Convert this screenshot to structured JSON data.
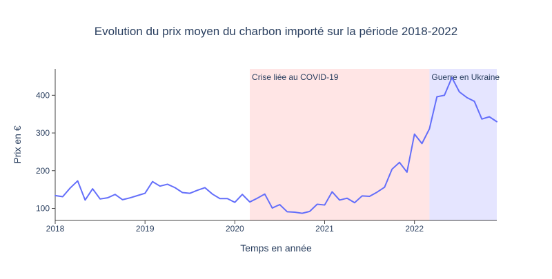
{
  "chart_data": {
    "type": "line",
    "title": "Evolution du prix moyen du charbon importé sur la période 2018-2022",
    "xlabel": "Temps en année",
    "ylabel": "Prix en €",
    "x_tick_labels": [
      "2018",
      "2019",
      "2020",
      "2021",
      "2022"
    ],
    "y_ticks": [
      100,
      200,
      300,
      400
    ],
    "ylim": [
      68,
      470
    ],
    "grid": false,
    "line_color": "#636efa",
    "regions": [
      {
        "label": "Crise liée au COVID-19",
        "start": "2020-03",
        "end": "2022-03",
        "color": "#ff0000",
        "opacity": 0.1
      },
      {
        "label": "Guerre en Ukraine",
        "start": "2022-03",
        "end": "2022-12",
        "color": "#0000ff",
        "opacity": 0.1
      }
    ],
    "x": [
      "2018-01",
      "2018-02",
      "2018-03",
      "2018-04",
      "2018-05",
      "2018-06",
      "2018-07",
      "2018-08",
      "2018-09",
      "2018-10",
      "2018-11",
      "2018-12",
      "2019-01",
      "2019-02",
      "2019-03",
      "2019-04",
      "2019-05",
      "2019-06",
      "2019-07",
      "2019-08",
      "2019-09",
      "2019-10",
      "2019-11",
      "2019-12",
      "2020-01",
      "2020-02",
      "2020-03",
      "2020-04",
      "2020-05",
      "2020-06",
      "2020-07",
      "2020-08",
      "2020-09",
      "2020-10",
      "2020-11",
      "2020-12",
      "2021-01",
      "2021-02",
      "2021-03",
      "2021-04",
      "2021-05",
      "2021-06",
      "2021-07",
      "2021-08",
      "2021-09",
      "2021-10",
      "2021-11",
      "2021-12",
      "2022-01",
      "2022-02",
      "2022-03",
      "2022-04",
      "2022-05",
      "2022-06",
      "2022-07",
      "2022-08",
      "2022-09",
      "2022-10",
      "2022-11",
      "2022-12"
    ],
    "values": [
      134,
      131,
      154,
      173,
      122,
      152,
      125,
      128,
      137,
      123,
      128,
      134,
      140,
      171,
      159,
      164,
      155,
      142,
      140,
      148,
      155,
      138,
      126,
      126,
      116,
      137,
      117,
      127,
      138,
      101,
      110,
      91,
      90,
      87,
      92,
      111,
      109,
      144,
      122,
      127,
      115,
      133,
      132,
      143,
      156,
      204,
      222,
      196,
      297,
      272,
      311,
      396,
      400,
      447,
      409,
      394,
      384,
      337,
      343,
      330
    ]
  }
}
